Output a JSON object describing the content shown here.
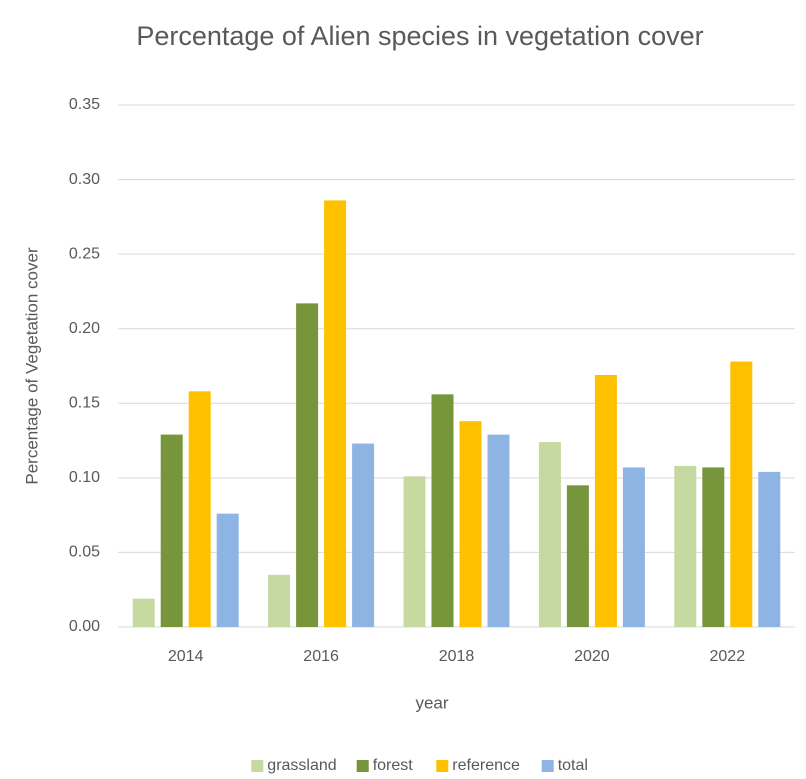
{
  "chart_data": {
    "type": "bar",
    "title": "Percentage of Alien species in vegetation cover",
    "x_label": "year",
    "y_label": "Percentage of Vegetation cover",
    "categories": [
      "2014",
      "2016",
      "2018",
      "2020",
      "2022"
    ],
    "series": [
      {
        "name": "grassland",
        "color": "#c5d9a0",
        "values": [
          0.019,
          0.035,
          0.101,
          0.124,
          0.108
        ]
      },
      {
        "name": "forest",
        "color": "#77963b",
        "values": [
          0.129,
          0.217,
          0.156,
          0.095,
          0.107
        ]
      },
      {
        "name": "reference",
        "color": "#ffc000",
        "values": [
          0.158,
          0.286,
          0.138,
          0.169,
          0.178
        ]
      },
      {
        "name": "total",
        "color": "#8eb4e3",
        "values": [
          0.076,
          0.123,
          0.129,
          0.107,
          0.104
        ]
      }
    ],
    "ylim": [
      0,
      0.35
    ],
    "yticks": [
      {
        "value": 0,
        "label": "0.00"
      },
      0.05,
      {
        "value": 0.1,
        "label": "0.10"
      },
      0.15,
      {
        "value": 0.2,
        "label": "0.20"
      },
      0.25,
      {
        "value": 0.3,
        "label": "0.30"
      },
      0.35
    ],
    "grid": true,
    "legend": "bottom"
  }
}
